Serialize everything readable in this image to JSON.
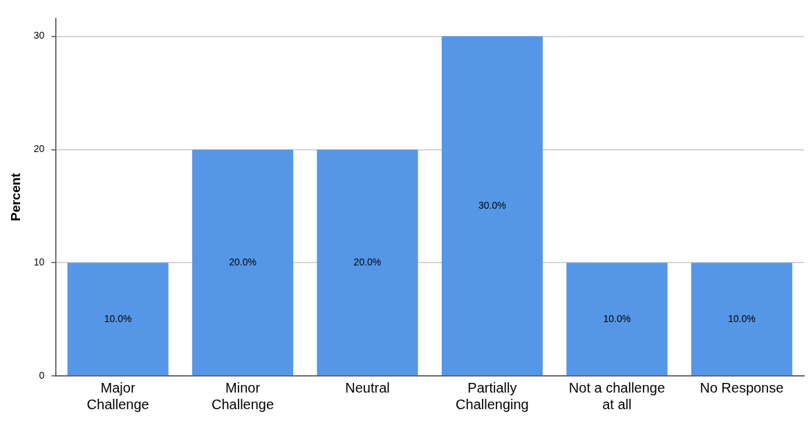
{
  "chart_data": {
    "type": "bar",
    "ylabel": "Percent",
    "categories": [
      "Major Challenge",
      "Minor Challenge",
      "Neutral",
      "Partially Challenging",
      "Not a challenge at all",
      "No Response"
    ],
    "values": [
      10,
      20,
      20,
      30,
      10,
      10
    ],
    "value_labels": [
      "10.0%",
      "20.0%",
      "20.0%",
      "30.0%",
      "10.0%",
      "10.0%"
    ],
    "color": "#5596e6",
    "ylim": [
      0,
      31.6
    ],
    "yticks": [
      0,
      10,
      20,
      30
    ],
    "grid": "y",
    "legend": false
  }
}
